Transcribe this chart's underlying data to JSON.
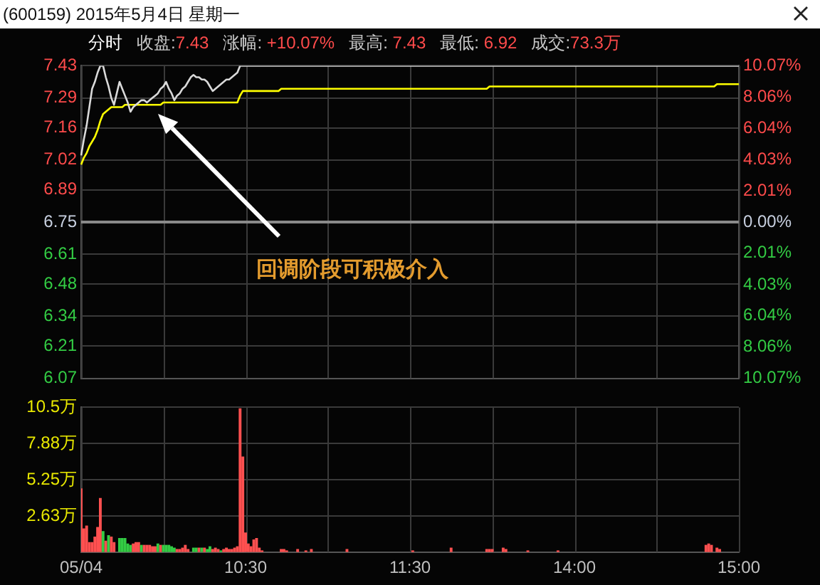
{
  "chart_data": [
    {
      "type": "line",
      "title": "(600159) 2015年5月4日 星期一",
      "annotations": [
        "分时",
        "收盘:7.43",
        "涨幅: +10.07%",
        "最高: 7.43",
        "最低: 6.92",
        "成交:73.3万",
        "回调阶段可积极介入"
      ],
      "categories": [
        null,
        null,
        null,
        null,
        null,
        null,
        null,
        null,
        null,
        null,
        null,
        null,
        null,
        null,
        null,
        null,
        null,
        null,
        null,
        null,
        null,
        null,
        null,
        null,
        null,
        null,
        null,
        null,
        null,
        null,
        null,
        null,
        null,
        null,
        null,
        null,
        null,
        null,
        null,
        null,
        null,
        null,
        null,
        null,
        null,
        null,
        null,
        null,
        null,
        null,
        null,
        null,
        null,
        null,
        null,
        null,
        null,
        null,
        null,
        null,
        null,
        null,
        null,
        null,
        null,
        null,
        null,
        null,
        null,
        null,
        null,
        null,
        null,
        null,
        null,
        null,
        null,
        null,
        null,
        null,
        null,
        null,
        null,
        null,
        null,
        null,
        null,
        null,
        null,
        null,
        null,
        null,
        null,
        null,
        null,
        null,
        null,
        null,
        null,
        null,
        null,
        null,
        null,
        null,
        null,
        null,
        null,
        null,
        null,
        null,
        null,
        null,
        null,
        null,
        null,
        null,
        null,
        null,
        null,
        null,
        null,
        null,
        null,
        null,
        null,
        null,
        null,
        null,
        null,
        null,
        null,
        null,
        null,
        null,
        null,
        null,
        null,
        null,
        null,
        null,
        null,
        null,
        null,
        null,
        null,
        null,
        null,
        null,
        null,
        null,
        null,
        null,
        null,
        null,
        null,
        null,
        null,
        null,
        null,
        null,
        null,
        null,
        null,
        null,
        null,
        null,
        null,
        null,
        null,
        null,
        null,
        null,
        null,
        null,
        null,
        null,
        null,
        null,
        null,
        null,
        null,
        null,
        null,
        null,
        null,
        null,
        null,
        null,
        null,
        null,
        null,
        null,
        null,
        null,
        null,
        null,
        null,
        null,
        null,
        null,
        null,
        null,
        null,
        null,
        null,
        null,
        null,
        null,
        null,
        null,
        null,
        null,
        null,
        null,
        null,
        null,
        null,
        null,
        null,
        null,
        null,
        null,
        null,
        null,
        null,
        null,
        null,
        null,
        null,
        null,
        null,
        null,
        null,
        null,
        null,
        null,
        null,
        null,
        null,
        null,
        null
      ],
      "series": [
        {
          "color": "#d9d9d9",
          "values": [
            7.04,
            7.11,
            7.17,
            7.25,
            7.33,
            7.36,
            7.4,
            7.43,
            7.43,
            7.38,
            7.34,
            7.29,
            7.26,
            7.31,
            7.36,
            7.33,
            7.3,
            7.27,
            7.23,
            7.25,
            7.26,
            7.27,
            7.28,
            7.28,
            7.27,
            7.28,
            7.29,
            7.3,
            7.31,
            7.33,
            7.34,
            7.36,
            7.33,
            7.31,
            7.28,
            7.3,
            7.31,
            7.33,
            7.34,
            7.36,
            7.38,
            7.39,
            7.38,
            7.38,
            7.37,
            7.37,
            7.36,
            7.34,
            7.32,
            7.33,
            7.34,
            7.35,
            7.36,
            7.37,
            7.37,
            7.38,
            7.39,
            7.4,
            7.43,
            7.43,
            7.43,
            7.43,
            7.43,
            7.43,
            7.43,
            7.43,
            7.43,
            7.43,
            7.43,
            7.43,
            7.43,
            7.43,
            7.43,
            7.43,
            7.43,
            7.43,
            7.43,
            7.43,
            7.43,
            7.43,
            7.43,
            7.43,
            7.43,
            7.43,
            7.43,
            7.43,
            7.43,
            7.43,
            7.43,
            7.43,
            7.43,
            7.43,
            7.43,
            7.43,
            7.43,
            7.43,
            7.43,
            7.43,
            7.43,
            7.43,
            7.43,
            7.43,
            7.43,
            7.43,
            7.43,
            7.43,
            7.43,
            7.43,
            7.43,
            7.43,
            7.43,
            7.43,
            7.43,
            7.43,
            7.43,
            7.43,
            7.43,
            7.43,
            7.43,
            7.43,
            7.43,
            7.43,
            7.43,
            7.43,
            7.43,
            7.43,
            7.43,
            7.43,
            7.43,
            7.43,
            7.43,
            7.43,
            7.43,
            7.43,
            7.43,
            7.43,
            7.43,
            7.43,
            7.43,
            7.43,
            7.43,
            7.43,
            7.43,
            7.43,
            7.43,
            7.43,
            7.43,
            7.43,
            7.43,
            7.43,
            7.43,
            7.43,
            7.43,
            7.43,
            7.43,
            7.43,
            7.43,
            7.43,
            7.43,
            7.43,
            7.43,
            7.43,
            7.43,
            7.43,
            7.43,
            7.43,
            7.43,
            7.43,
            7.43,
            7.43,
            7.43,
            7.43,
            7.43,
            7.43,
            7.43,
            7.43,
            7.43,
            7.43,
            7.43,
            7.43,
            7.43,
            7.43,
            7.43,
            7.43,
            7.43,
            7.43,
            7.43,
            7.43,
            7.43,
            7.43,
            7.43,
            7.43,
            7.43,
            7.43,
            7.43,
            7.43,
            7.43,
            7.43,
            7.43,
            7.43,
            7.43,
            7.43,
            7.43,
            7.43,
            7.43,
            7.43,
            7.43,
            7.43,
            7.43,
            7.43,
            7.43,
            7.43,
            7.43,
            7.43,
            7.43,
            7.43,
            7.43,
            7.43,
            7.43,
            7.43,
            7.43,
            7.43,
            7.43,
            7.43,
            7.43,
            7.43,
            7.43,
            7.43,
            7.43,
            7.43,
            7.43,
            7.43,
            7.43,
            7.43,
            7.43,
            7.43,
            7.43,
            7.43,
            7.43,
            7.43,
            7.43
          ]
        },
        {
          "color": "#ffff00",
          "values": [
            7.0,
            7.03,
            7.05,
            7.08,
            7.1,
            7.12,
            7.15,
            7.19,
            7.22,
            7.23,
            7.24,
            7.25,
            7.25,
            7.25,
            7.25,
            7.25,
            7.26,
            7.26,
            7.26,
            7.26,
            7.26,
            7.26,
            7.26,
            7.26,
            7.26,
            7.26,
            7.26,
            7.26,
            7.26,
            7.26,
            7.27,
            7.27,
            7.27,
            7.27,
            7.27,
            7.27,
            7.27,
            7.27,
            7.27,
            7.27,
            7.27,
            7.27,
            7.27,
            7.27,
            7.27,
            7.27,
            7.27,
            7.27,
            7.27,
            7.27,
            7.27,
            7.27,
            7.27,
            7.27,
            7.27,
            7.27,
            7.27,
            7.27,
            7.3,
            7.32,
            7.32,
            7.32,
            7.32,
            7.32,
            7.32,
            7.32,
            7.32,
            7.32,
            7.32,
            7.32,
            7.32,
            7.32,
            7.32,
            7.33,
            7.33,
            7.33,
            7.33,
            7.33,
            7.33,
            7.33,
            7.33,
            7.33,
            7.33,
            7.33,
            7.33,
            7.33,
            7.33,
            7.33,
            7.33,
            7.33,
            7.33,
            7.33,
            7.33,
            7.33,
            7.33,
            7.33,
            7.33,
            7.33,
            7.33,
            7.33,
            7.33,
            7.33,
            7.33,
            7.33,
            7.33,
            7.33,
            7.33,
            7.33,
            7.33,
            7.33,
            7.33,
            7.33,
            7.33,
            7.33,
            7.33,
            7.33,
            7.33,
            7.33,
            7.33,
            7.33,
            7.33,
            7.33,
            7.33,
            7.33,
            7.33,
            7.33,
            7.33,
            7.33,
            7.33,
            7.33,
            7.33,
            7.33,
            7.33,
            7.33,
            7.33,
            7.33,
            7.33,
            7.33,
            7.33,
            7.33,
            7.33,
            7.33,
            7.33,
            7.33,
            7.33,
            7.33,
            7.33,
            7.33,
            7.33,
            7.34,
            7.34,
            7.34,
            7.34,
            7.34,
            7.34,
            7.34,
            7.34,
            7.34,
            7.34,
            7.34,
            7.34,
            7.34,
            7.34,
            7.34,
            7.34,
            7.34,
            7.34,
            7.34,
            7.34,
            7.34,
            7.34,
            7.34,
            7.34,
            7.34,
            7.34,
            7.34,
            7.34,
            7.34,
            7.34,
            7.34,
            7.34,
            7.34,
            7.34,
            7.34,
            7.34,
            7.34,
            7.34,
            7.34,
            7.34,
            7.34,
            7.34,
            7.34,
            7.34,
            7.34,
            7.34,
            7.34,
            7.34,
            7.34,
            7.34,
            7.34,
            7.34,
            7.34,
            7.34,
            7.34,
            7.34,
            7.34,
            7.34,
            7.34,
            7.34,
            7.34,
            7.34,
            7.34,
            7.34,
            7.34,
            7.34,
            7.34,
            7.34,
            7.34,
            7.34,
            7.34,
            7.34,
            7.34,
            7.34,
            7.34,
            7.34,
            7.34,
            7.34,
            7.34,
            7.34,
            7.34,
            7.34,
            7.34,
            7.35,
            7.35,
            7.35,
            7.35,
            7.35,
            7.35,
            7.35,
            7.35,
            7.35
          ]
        }
      ],
      "ylim": [
        6.07,
        7.43
      ],
      "yticks": [
        6.07,
        6.21,
        6.34,
        6.48,
        6.61,
        6.75,
        6.89,
        7.02,
        7.16,
        7.29,
        7.43
      ],
      "y2lim": [
        -10.07,
        10.07
      ],
      "y2ticks": [
        {
          "value": -10.07,
          "label": "10.07%"
        },
        {
          "value": -8.06,
          "label": "8.06%"
        },
        {
          "value": -6.04,
          "label": "6.04%"
        },
        {
          "value": -4.03,
          "label": "4.03%"
        },
        {
          "value": -2.01,
          "label": "2.01%"
        },
        {
          "value": 0,
          "label": "0.00%"
        },
        {
          "value": 2.01,
          "label": "2.01%"
        },
        {
          "value": 4.03,
          "label": "4.03%"
        },
        {
          "value": 6.04,
          "label": "6.04%"
        },
        {
          "value": 8.06,
          "label": "8.06%"
        },
        {
          "value": 10.07,
          "label": "10.07%"
        }
      ],
      "ref_lines": [
        {
          "axis": "y",
          "value": 6.75,
          "color": "#8a8a8a"
        }
      ],
      "grid": true,
      "tick_labels": "y"
    },
    {
      "type": "bar",
      "categories": [
        "05/04",
        null,
        null,
        null,
        null,
        null,
        null,
        null,
        null,
        null,
        null,
        null,
        null,
        null,
        null,
        null,
        null,
        null,
        null,
        null,
        null,
        null,
        null,
        null,
        null,
        null,
        null,
        null,
        null,
        null,
        null,
        null,
        null,
        null,
        null,
        null,
        null,
        null,
        null,
        null,
        null,
        null,
        null,
        null,
        null,
        null,
        null,
        null,
        null,
        null,
        null,
        null,
        null,
        null,
        null,
        null,
        null,
        null,
        null,
        null,
        "10:30",
        null,
        null,
        null,
        null,
        null,
        null,
        null,
        null,
        null,
        null,
        null,
        null,
        null,
        null,
        null,
        null,
        null,
        null,
        null,
        null,
        null,
        null,
        null,
        null,
        null,
        null,
        null,
        null,
        null,
        null,
        null,
        null,
        null,
        null,
        null,
        null,
        null,
        null,
        null,
        null,
        null,
        null,
        null,
        null,
        null,
        null,
        null,
        null,
        null,
        null,
        null,
        null,
        null,
        null,
        null,
        null,
        null,
        null,
        null,
        "11:30",
        null,
        null,
        null,
        null,
        null,
        null,
        null,
        null,
        null,
        null,
        null,
        null,
        null,
        null,
        null,
        null,
        null,
        null,
        null,
        null,
        null,
        null,
        null,
        null,
        null,
        null,
        null,
        null,
        null,
        null,
        null,
        null,
        null,
        null,
        null,
        null,
        null,
        null,
        null,
        null,
        null,
        null,
        null,
        null,
        null,
        null,
        null,
        null,
        null,
        null,
        null,
        null,
        null,
        null,
        null,
        null,
        null,
        null,
        null,
        "14:00",
        null,
        null,
        null,
        null,
        null,
        null,
        null,
        null,
        null,
        null,
        null,
        null,
        null,
        null,
        null,
        null,
        null,
        null,
        null,
        null,
        null,
        null,
        null,
        null,
        null,
        null,
        null,
        null,
        null,
        null,
        null,
        null,
        null,
        null,
        null,
        null,
        null,
        null,
        null,
        null,
        null,
        null,
        null,
        null,
        null,
        null,
        null,
        null,
        null,
        null,
        null,
        null,
        null,
        null,
        null,
        null,
        null,
        null,
        null,
        "15:00"
      ],
      "values": [
        4.6,
        1.7,
        1.9,
        0.7,
        0.7,
        1.1,
        1.8,
        3.9,
        1.5,
        0.8,
        1.2,
        1.1,
        0.7,
        null,
        1.0,
        1.0,
        1.0,
        0.6,
        0.5,
        0.6,
        0.7,
        0.7,
        0.5,
        0.5,
        0.5,
        0.5,
        0.4,
        0.4,
        0.6,
        0.5,
        0.5,
        0.5,
        0.5,
        0.4,
        0.3,
        0.2,
        0.2,
        0.3,
        0.5,
        0.2,
        null,
        0.3,
        0.3,
        0.3,
        0.3,
        0.3,
        0.2,
        0.4,
        0.2,
        0.3,
        0.2,
        0.1,
        0.2,
        0.3,
        0.2,
        0.2,
        0.3,
        0.4,
        10.4,
        6.9,
        1.4,
        0.6,
        0.4,
        0.9,
        1.0,
        0.3,
        0.1,
        null,
        null,
        null,
        null,
        null,
        null,
        0.2,
        0.2,
        0.1,
        null,
        null,
        null,
        0.2,
        null,
        null,
        0.1,
        null,
        0.2,
        null,
        null,
        null,
        null,
        null,
        null,
        null,
        null,
        null,
        null,
        null,
        null,
        0.2,
        null,
        null,
        null,
        null,
        null,
        null,
        null,
        null,
        null,
        null,
        null,
        null,
        null,
        null,
        null,
        null,
        null,
        null,
        null,
        null,
        null,
        null,
        null,
        0.1,
        null,
        null,
        null,
        null,
        null,
        null,
        null,
        null,
        null,
        null,
        null,
        null,
        null,
        0.3,
        null,
        null,
        null,
        null,
        null,
        null,
        null,
        null,
        null,
        null,
        null,
        null,
        0.2,
        0.2,
        0.2,
        null,
        null,
        null,
        0.3,
        0.2,
        null,
        null,
        null,
        null,
        null,
        null,
        null,
        0.1,
        null,
        null,
        null,
        null,
        null,
        null,
        null,
        null,
        null,
        null,
        0.1,
        null,
        null,
        null,
        null,
        null,
        null,
        null,
        null,
        null,
        null,
        null,
        null,
        null,
        null,
        null,
        null,
        null,
        null,
        null,
        null,
        null,
        null,
        null,
        null,
        null,
        null,
        null,
        null,
        null,
        null,
        null,
        null,
        null,
        null,
        null,
        null,
        null,
        null,
        null,
        null,
        null,
        null,
        null,
        null,
        null,
        null,
        null,
        null,
        null,
        null,
        null,
        null,
        null,
        0.5,
        0.6,
        0.5,
        null,
        0.3,
        0.2,
        null,
        null,
        null,
        null,
        null,
        null,
        null
      ],
      "colors": [
        "#ff5050",
        "#ff5050",
        "#ff5050",
        "#ff5050",
        "#ff5050",
        "#ff5050",
        "#ff5050",
        "#ff5050",
        "#33cc44",
        "#ff5050",
        "#33cc44",
        "#ff5050",
        "#ff5050",
        "#ff5050",
        "#33cc44",
        "#33cc44",
        "#33cc44",
        "#33cc44",
        "#33cc44",
        "#ff5050",
        "#ff5050",
        "#ff5050",
        "#33cc44",
        "#ff5050",
        "#ff5050",
        "#ff5050",
        "#ff5050",
        "#ff5050",
        "#33cc44",
        "#ff5050",
        "#33cc44",
        "#33cc44",
        "#33cc44",
        "#33cc44",
        "#33cc44",
        "#ff5050",
        "#ff5050",
        "#ff5050",
        "#ff5050",
        "#ff5050",
        "#ff5050",
        "#33cc44",
        "#33cc44",
        "#ff5050",
        "#33cc44",
        "#ff5050",
        "#33cc44",
        "#33cc44",
        "#ff5050",
        "#ff5050",
        "#ff5050",
        "#33cc44",
        "#ff5050",
        "#ff5050",
        "#ff5050",
        "#ff5050",
        "#ff5050",
        "#ff5050",
        "#ff5050",
        "#ff5050",
        "#ff5050",
        "#ff5050",
        "#ff5050",
        "#ff5050",
        "#ff5050",
        "#ff5050",
        "#ff5050",
        "#ff5050",
        "#ff5050",
        "#ff5050",
        "#ff5050",
        "#ff5050",
        "#ff5050",
        "#ff5050",
        "#ff5050",
        "#ff5050",
        "#ff5050",
        "#ff5050",
        "#ff5050",
        "#ff5050",
        "#ff5050",
        "#ff5050",
        "#ff5050",
        "#ff5050",
        "#ff5050",
        "#ff5050",
        "#ff5050",
        "#ff5050",
        "#ff5050",
        "#ff5050",
        "#ff5050",
        "#ff5050",
        "#ff5050",
        "#ff5050",
        "#ff5050",
        "#ff5050",
        "#ff5050",
        "#ff5050",
        "#ff5050",
        "#ff5050",
        "#ff5050",
        "#ff5050",
        "#ff5050",
        "#ff5050",
        "#ff5050",
        "#ff5050",
        "#ff5050",
        "#ff5050",
        "#ff5050",
        "#ff5050",
        "#ff5050",
        "#ff5050",
        "#ff5050",
        "#ff5050",
        "#ff5050",
        "#ff5050",
        "#ff5050",
        "#ff5050",
        "#ff5050",
        "#ff5050",
        "#ff5050",
        "#ff5050",
        "#ff5050",
        "#ff5050",
        "#ff5050",
        "#ff5050",
        "#ff5050",
        "#ff5050",
        "#ff5050",
        "#ff5050",
        "#ff5050",
        "#ff5050",
        "#ff5050",
        "#ff5050",
        "#ff5050",
        "#ff5050",
        "#ff5050",
        "#ff5050",
        "#ff5050",
        "#ff5050",
        "#ff5050",
        "#ff5050",
        "#ff5050",
        "#ff5050",
        "#ff5050",
        "#ff5050",
        "#ff5050",
        "#ff5050",
        "#ff5050",
        "#ff5050",
        "#ff5050",
        "#ff5050",
        "#ff5050",
        "#ff5050",
        "#ff5050",
        "#ff5050",
        "#ff5050",
        "#ff5050",
        "#ff5050",
        "#ff5050",
        "#ff5050",
        "#ff5050",
        "#ff5050",
        "#ff5050",
        "#ff5050",
        "#ff5050",
        "#ff5050",
        "#ff5050",
        "#ff5050",
        "#ff5050",
        "#ff5050",
        "#ff5050",
        "#ff5050",
        "#ff5050",
        "#ff5050",
        "#ff5050",
        "#ff5050",
        "#ff5050",
        "#ff5050",
        "#ff5050",
        "#ff5050",
        "#ff5050",
        "#ff5050",
        "#ff5050",
        "#ff5050",
        "#ff5050",
        "#ff5050",
        "#ff5050",
        "#ff5050",
        "#ff5050",
        "#ff5050",
        "#ff5050",
        "#ff5050",
        "#ff5050",
        "#ff5050",
        "#ff5050",
        "#ff5050",
        "#ff5050",
        "#ff5050",
        "#ff5050",
        "#ff5050",
        "#ff5050",
        "#ff5050",
        "#ff5050",
        "#ff5050",
        "#ff5050",
        "#ff5050",
        "#ff5050",
        "#ff5050",
        "#ff5050",
        "#ff5050",
        "#ff5050",
        "#ff5050",
        "#ff5050",
        "#ff5050",
        "#ff5050",
        "#ff5050",
        "#ff5050",
        "#ff5050",
        "#ff5050",
        "#ff5050",
        "#ff5050",
        "#ff5050",
        "#ff5050",
        "#ff5050",
        "#ff5050",
        "#ff5050",
        "#ff5050",
        "#ff5050",
        "#ff5050",
        "#ff5050",
        "#ff5050",
        "#ff5050",
        "#ff5050",
        "#ff5050",
        "#ff5050",
        "#ff5050",
        "#ff5050",
        "#ff5050",
        "#ff5050",
        "#ff5050"
      ],
      "ylim": [
        0,
        10.5
      ],
      "yticks": [
        {
          "value": 0,
          "label": null
        },
        {
          "value": 2.63,
          "label": "2.63万"
        },
        {
          "value": 5.25,
          "label": "5.25万"
        },
        {
          "value": 7.88,
          "label": "7.88万"
        },
        {
          "value": 10.5,
          "label": "10.5万"
        }
      ],
      "grid": true
    }
  ]
}
